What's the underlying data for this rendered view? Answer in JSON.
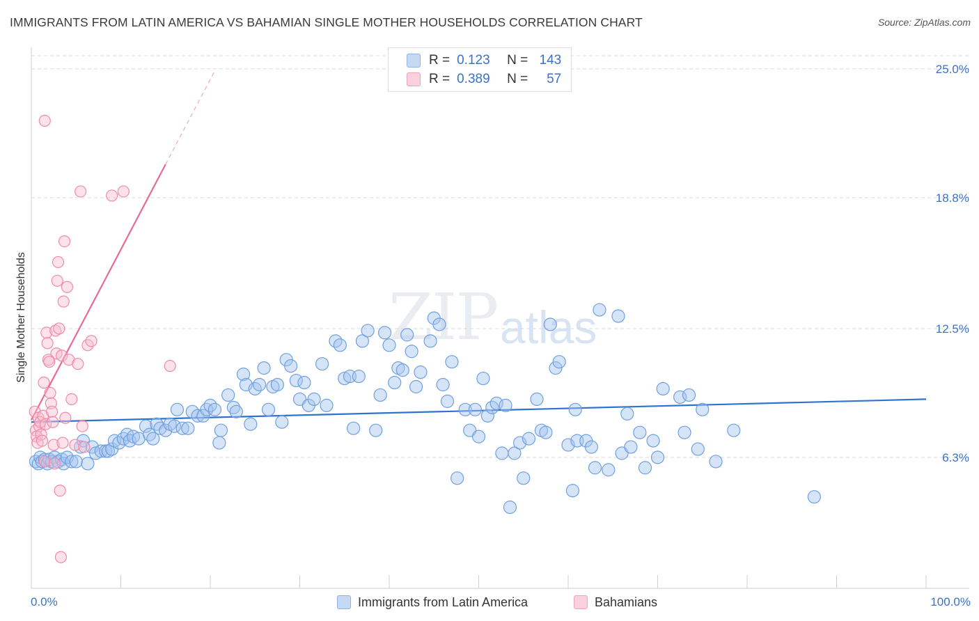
{
  "title": "IMMIGRANTS FROM LATIN AMERICA VS BAHAMIAN SINGLE MOTHER HOUSEHOLDS CORRELATION CHART",
  "source": "Source: ZipAtlas.com",
  "watermark_zip": "ZIP",
  "watermark_atlas": "atlas",
  "colors": {
    "blue": "#6ea0e0",
    "blue_line": "#2f72d0",
    "pink": "#f08aa8",
    "pink_line": "#e86a92",
    "axis_text": "#3a72c8"
  },
  "legend": {
    "rows": [
      {
        "r_label": "R =",
        "r_value": "0.123",
        "n_label": "N =",
        "n_value": "143"
      },
      {
        "r_label": "R =",
        "r_value": "0.389",
        "n_label": "N =",
        "n_value": "57"
      }
    ]
  },
  "bottom_legend": {
    "series1": "Immigrants from Latin America",
    "series2": "Bahamians"
  },
  "chart_data": {
    "type": "scatter",
    "title": "IMMIGRANTS FROM LATIN AMERICA VS BAHAMIAN SINGLE MOTHER HOUSEHOLDS CORRELATION CHART",
    "xlabel": "",
    "ylabel": "Single Mother Households",
    "xlim": [
      0,
      100
    ],
    "ylim": [
      0,
      25.8
    ],
    "x_tick_labels": [
      "0.0%",
      "100.0%"
    ],
    "y_ticks": [
      6.3,
      12.5,
      18.8,
      25.0
    ],
    "y_tick_labels": [
      "6.3%",
      "12.5%",
      "18.8%",
      "25.0%"
    ],
    "series": [
      {
        "name": "Immigrants from Latin America",
        "r": 0.123,
        "n": 143,
        "trend": {
          "x0": 0,
          "y0": 8.0,
          "x1": 100,
          "y1": 9.1
        },
        "points": [
          [
            0.5,
            6.1
          ],
          [
            0.8,
            6.0
          ],
          [
            1.0,
            6.3
          ],
          [
            1.2,
            6.1
          ],
          [
            1.5,
            6.2
          ],
          [
            1.8,
            6.0
          ],
          [
            2.0,
            6.2
          ],
          [
            2.3,
            6.1
          ],
          [
            2.6,
            6.3
          ],
          [
            3.0,
            6.1
          ],
          [
            3.4,
            6.2
          ],
          [
            3.6,
            6.0
          ],
          [
            4.0,
            6.3
          ],
          [
            4.5,
            6.1
          ],
          [
            5.0,
            6.1
          ],
          [
            5.5,
            6.8
          ],
          [
            5.8,
            7.1
          ],
          [
            6.3,
            6.0
          ],
          [
            6.8,
            6.8
          ],
          [
            7.2,
            6.5
          ],
          [
            7.8,
            6.6
          ],
          [
            8.3,
            6.6
          ],
          [
            8.6,
            6.6
          ],
          [
            9.0,
            6.7
          ],
          [
            9.3,
            7.1
          ],
          [
            9.8,
            7.0
          ],
          [
            10.3,
            7.2
          ],
          [
            10.7,
            7.4
          ],
          [
            11.0,
            7.1
          ],
          [
            11.4,
            7.3
          ],
          [
            12.0,
            7.2
          ],
          [
            12.8,
            7.8
          ],
          [
            13.2,
            7.4
          ],
          [
            13.6,
            7.2
          ],
          [
            14.0,
            7.9
          ],
          [
            14.4,
            7.7
          ],
          [
            15.0,
            7.6
          ],
          [
            15.5,
            7.9
          ],
          [
            16.0,
            7.8
          ],
          [
            16.3,
            8.6
          ],
          [
            16.9,
            7.7
          ],
          [
            17.5,
            7.7
          ],
          [
            18.0,
            8.5
          ],
          [
            18.6,
            8.3
          ],
          [
            19.2,
            8.3
          ],
          [
            19.6,
            8.6
          ],
          [
            20.0,
            8.8
          ],
          [
            20.5,
            8.6
          ],
          [
            21.0,
            7.0
          ],
          [
            21.2,
            7.6
          ],
          [
            22.0,
            9.3
          ],
          [
            22.6,
            8.7
          ],
          [
            22.9,
            8.5
          ],
          [
            23.7,
            10.3
          ],
          [
            24.0,
            9.8
          ],
          [
            24.5,
            7.9
          ],
          [
            25.0,
            9.6
          ],
          [
            25.5,
            9.8
          ],
          [
            26.0,
            10.6
          ],
          [
            26.5,
            8.6
          ],
          [
            27.0,
            9.7
          ],
          [
            27.5,
            9.8
          ],
          [
            28.0,
            8.0
          ],
          [
            28.5,
            11.0
          ],
          [
            29.0,
            10.7
          ],
          [
            29.6,
            10.0
          ],
          [
            30.0,
            9.1
          ],
          [
            30.5,
            9.9
          ],
          [
            31.0,
            8.8
          ],
          [
            31.6,
            9.1
          ],
          [
            32.5,
            10.8
          ],
          [
            33.0,
            8.8
          ],
          [
            34.0,
            11.9
          ],
          [
            34.5,
            11.7
          ],
          [
            35.0,
            10.1
          ],
          [
            35.6,
            10.2
          ],
          [
            36.0,
            7.7
          ],
          [
            36.6,
            10.2
          ],
          [
            37.0,
            11.9
          ],
          [
            37.6,
            12.4
          ],
          [
            38.5,
            7.6
          ],
          [
            39.0,
            9.3
          ],
          [
            39.5,
            12.3
          ],
          [
            40.0,
            11.7
          ],
          [
            40.6,
            9.9
          ],
          [
            41.0,
            10.6
          ],
          [
            41.5,
            10.5
          ],
          [
            42.0,
            12.2
          ],
          [
            42.5,
            11.4
          ],
          [
            43.0,
            9.7
          ],
          [
            43.5,
            10.4
          ],
          [
            44.6,
            11.9
          ],
          [
            45.0,
            13.0
          ],
          [
            45.6,
            12.7
          ],
          [
            46.0,
            9.8
          ],
          [
            46.5,
            9.0
          ],
          [
            47.0,
            10.9
          ],
          [
            47.6,
            5.3
          ],
          [
            48.5,
            8.6
          ],
          [
            49.0,
            7.6
          ],
          [
            49.6,
            8.6
          ],
          [
            50.0,
            7.3
          ],
          [
            50.5,
            10.1
          ],
          [
            51.0,
            8.3
          ],
          [
            51.5,
            8.7
          ],
          [
            52.0,
            8.9
          ],
          [
            52.6,
            6.5
          ],
          [
            53.0,
            8.8
          ],
          [
            53.5,
            3.9
          ],
          [
            54.0,
            6.5
          ],
          [
            54.6,
            7.0
          ],
          [
            55.0,
            5.3
          ],
          [
            55.6,
            7.2
          ],
          [
            56.5,
            9.1
          ],
          [
            57.0,
            7.6
          ],
          [
            57.5,
            7.5
          ],
          [
            58.0,
            12.7
          ],
          [
            58.6,
            10.6
          ],
          [
            59.0,
            10.9
          ],
          [
            60.0,
            6.9
          ],
          [
            60.5,
            4.7
          ],
          [
            60.8,
            8.6
          ],
          [
            61.0,
            7.1
          ],
          [
            62.0,
            7.1
          ],
          [
            62.6,
            6.8
          ],
          [
            63.0,
            5.8
          ],
          [
            63.5,
            13.4
          ],
          [
            64.5,
            5.7
          ],
          [
            65.6,
            13.1
          ],
          [
            66.0,
            6.5
          ],
          [
            66.6,
            8.4
          ],
          [
            67.0,
            6.8
          ],
          [
            68.0,
            7.5
          ],
          [
            68.6,
            5.8
          ],
          [
            69.5,
            7.1
          ],
          [
            70.0,
            6.3
          ],
          [
            70.6,
            9.6
          ],
          [
            72.5,
            9.2
          ],
          [
            73.0,
            7.5
          ],
          [
            73.5,
            9.3
          ],
          [
            74.5,
            6.7
          ],
          [
            75.0,
            8.6
          ],
          [
            76.5,
            6.1
          ],
          [
            78.5,
            7.6
          ],
          [
            87.5,
            4.4
          ]
        ]
      },
      {
        "name": "Bahamians",
        "r": 0.389,
        "n": 57,
        "trend": {
          "x0": 0,
          "y0": 8.1,
          "x1": 15.0,
          "y1": 20.4,
          "dash_to": {
            "x": 20.5,
            "y": 24.9
          }
        },
        "points": [
          [
            0.4,
            8.5
          ],
          [
            0.5,
            7.6
          ],
          [
            0.6,
            7.3
          ],
          [
            0.7,
            7.0
          ],
          [
            0.8,
            8.2
          ],
          [
            0.9,
            7.8
          ],
          [
            1.0,
            8.0
          ],
          [
            1.1,
            7.4
          ],
          [
            1.2,
            7.1
          ],
          [
            1.3,
            8.3
          ],
          [
            1.4,
            9.9
          ],
          [
            1.5,
            6.1
          ],
          [
            1.6,
            7.9
          ],
          [
            1.7,
            12.3
          ],
          [
            1.8,
            11.8
          ],
          [
            1.9,
            11.0
          ],
          [
            2.0,
            10.9
          ],
          [
            2.1,
            9.4
          ],
          [
            2.2,
            8.9
          ],
          [
            2.3,
            8.5
          ],
          [
            2.4,
            8.0
          ],
          [
            2.5,
            6.9
          ],
          [
            2.6,
            6.0
          ],
          [
            2.7,
            12.4
          ],
          [
            2.8,
            11.3
          ],
          [
            2.9,
            14.8
          ],
          [
            3.0,
            15.7
          ],
          [
            3.1,
            12.5
          ],
          [
            3.2,
            4.7
          ],
          [
            3.3,
            1.5
          ],
          [
            3.4,
            11.2
          ],
          [
            3.5,
            7.0
          ],
          [
            3.6,
            13.8
          ],
          [
            3.7,
            16.7
          ],
          [
            3.8,
            8.2
          ],
          [
            4.0,
            14.5
          ],
          [
            4.2,
            11.0
          ],
          [
            4.5,
            9.1
          ],
          [
            4.9,
            6.9
          ],
          [
            5.2,
            10.8
          ],
          [
            5.5,
            19.1
          ],
          [
            5.7,
            7.8
          ],
          [
            5.9,
            6.8
          ],
          [
            6.3,
            11.7
          ],
          [
            6.7,
            11.9
          ],
          [
            1.5,
            22.5
          ],
          [
            9.0,
            18.9
          ],
          [
            10.3,
            19.1
          ],
          [
            15.5,
            10.7
          ]
        ]
      }
    ]
  }
}
